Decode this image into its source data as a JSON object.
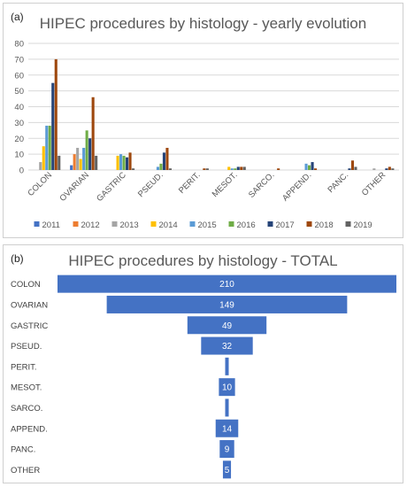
{
  "panel_a_label": "(a)",
  "panel_b_label": "(b)",
  "chart_data": [
    {
      "type": "bar",
      "title": "HIPEC procedures by histology - yearly evolution",
      "categories": [
        "COLON",
        "OVARIAN",
        "GASTRIC",
        "PSEUD.",
        "PERIT.",
        "MESOT.",
        "SARCO.",
        "APPEND.",
        "PANC.",
        "OTHER"
      ],
      "ylim": [
        0,
        80
      ],
      "yticks": [
        0,
        10,
        20,
        30,
        40,
        50,
        60,
        70,
        80
      ],
      "grid": true,
      "legend": "bottom",
      "series": [
        {
          "name": "2011",
          "color": "#4472C4",
          "values": [
            0,
            3,
            0,
            0,
            0,
            0,
            0,
            0,
            0,
            0
          ]
        },
        {
          "name": "2012",
          "color": "#ED7D31",
          "values": [
            0,
            10,
            0,
            0,
            0,
            0,
            0,
            0,
            0,
            0
          ]
        },
        {
          "name": "2013",
          "color": "#A5A5A5",
          "values": [
            5,
            14,
            0,
            0,
            0,
            0,
            0,
            0,
            0,
            1
          ]
        },
        {
          "name": "2014",
          "color": "#FFC000",
          "values": [
            15,
            7,
            9,
            0,
            0,
            2,
            0,
            0,
            0,
            0
          ]
        },
        {
          "name": "2015",
          "color": "#5B9BD5",
          "values": [
            28,
            14,
            10,
            2,
            0,
            1,
            0,
            4,
            0,
            0
          ]
        },
        {
          "name": "2016",
          "color": "#70AD47",
          "values": [
            28,
            25,
            9,
            4,
            0,
            1,
            0,
            3,
            0,
            0
          ]
        },
        {
          "name": "2017",
          "color": "#264478",
          "values": [
            55,
            20,
            8,
            11,
            0,
            2,
            0,
            5,
            1,
            1
          ]
        },
        {
          "name": "2018",
          "color": "#9E480E",
          "values": [
            70,
            46,
            11,
            14,
            1,
            2,
            1,
            1,
            6,
            2
          ]
        },
        {
          "name": "2019",
          "color": "#636363",
          "values": [
            9,
            9,
            1,
            1,
            1,
            2,
            0,
            0,
            2,
            1
          ]
        }
      ]
    },
    {
      "type": "bar",
      "orientation": "horizontal-funnel",
      "title": "HIPEC procedures by histology - TOTAL",
      "categories": [
        "COLON",
        "OVARIAN",
        "GASTRIC",
        "PSEUD.",
        "PERIT.",
        "MESOT.",
        "SARCO.",
        "APPEND.",
        "PANC.",
        "OTHER"
      ],
      "values": [
        210,
        149,
        49,
        32,
        2,
        10,
        1,
        14,
        9,
        5
      ],
      "value_labels": [
        "210",
        "149",
        "49",
        "32",
        "",
        "10",
        "",
        "14",
        "9",
        "5"
      ],
      "color": "#4472C4"
    }
  ]
}
